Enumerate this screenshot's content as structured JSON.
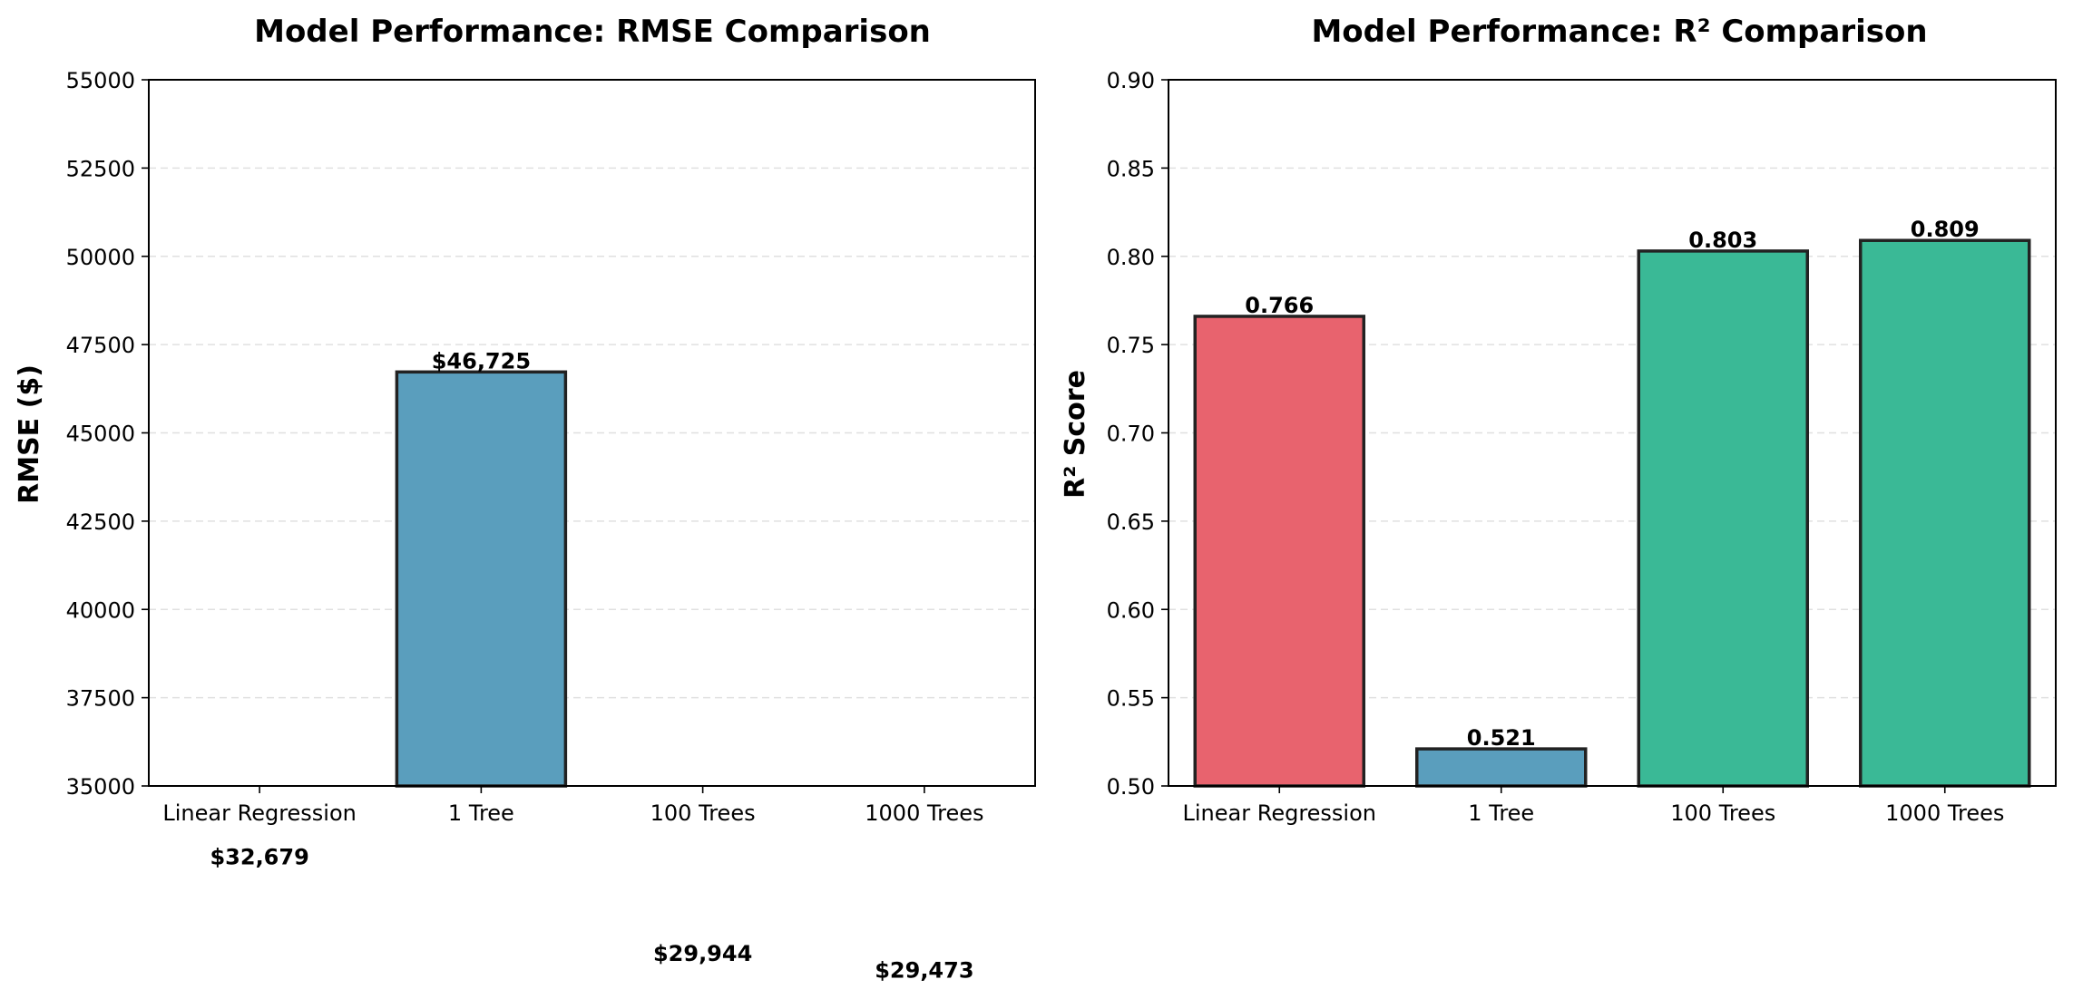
{
  "chart_data": [
    {
      "type": "bar",
      "title": "Model Performance: RMSE Comparison",
      "xlabel": "",
      "ylabel": "RMSE ($)",
      "categories": [
        "Linear Regression",
        "1 Tree",
        "100 Trees",
        "1000 Trees"
      ],
      "values": [
        32679,
        46725,
        29944,
        29473
      ],
      "value_labels": [
        "$32,679",
        "$46,725",
        "$29,944",
        "$29,473"
      ],
      "colors": [
        "#e8636e",
        "#5a9ebd",
        "#3ab996",
        "#3ab996"
      ],
      "ylim": [
        35000,
        55000
      ],
      "yticks": [
        35000,
        37500,
        40000,
        42500,
        45000,
        47500,
        50000,
        52500,
        55000
      ],
      "ytick_labels": [
        "35000",
        "37500",
        "40000",
        "42500",
        "45000",
        "47500",
        "50000",
        "52500",
        "55000"
      ],
      "grid": "y-dashed"
    },
    {
      "type": "bar",
      "title": "Model Performance: R² Comparison",
      "xlabel": "",
      "ylabel": "R² Score",
      "categories": [
        "Linear Regression",
        "1 Tree",
        "100 Trees",
        "1000 Trees"
      ],
      "values": [
        0.766,
        0.521,
        0.803,
        0.809
      ],
      "value_labels": [
        "0.766",
        "0.521",
        "0.803",
        "0.809"
      ],
      "colors": [
        "#e8636e",
        "#5a9ebd",
        "#3ab996",
        "#3ab996"
      ],
      "ylim": [
        0.5,
        0.9
      ],
      "yticks": [
        0.5,
        0.55,
        0.6,
        0.65,
        0.7,
        0.75,
        0.8,
        0.85,
        0.9
      ],
      "ytick_labels": [
        "0.50",
        "0.55",
        "0.60",
        "0.65",
        "0.70",
        "0.75",
        "0.80",
        "0.85",
        "0.90"
      ],
      "grid": "y-dashed"
    }
  ]
}
